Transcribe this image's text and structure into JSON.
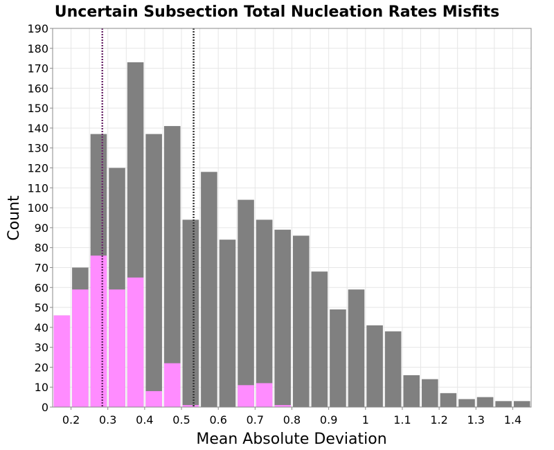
{
  "chart_data": {
    "type": "bar",
    "title": "Uncertain Subsection Total Nucleation Rates Misfits",
    "xlabel": "Mean Absolute Deviation",
    "ylabel": "Count",
    "xlim": [
      0.15,
      1.45
    ],
    "ylim": [
      0,
      190
    ],
    "bin_width": 0.05,
    "x_ticks": [
      "0.2",
      "0.3",
      "0.4",
      "0.5",
      "0.6",
      "0.7",
      "0.8",
      "0.9",
      "1",
      "1.1",
      "1.2",
      "1.3",
      "1.4"
    ],
    "x_tick_values": [
      0.2,
      0.3,
      0.4,
      0.5,
      0.6,
      0.7,
      0.8,
      0.9,
      1.0,
      1.1,
      1.2,
      1.3,
      1.4
    ],
    "y_ticks": [
      0,
      10,
      20,
      30,
      40,
      50,
      60,
      70,
      80,
      90,
      100,
      110,
      120,
      130,
      140,
      150,
      160,
      170,
      180,
      190
    ],
    "grid": true,
    "series": [
      {
        "color": "#808080",
        "bins": [
          0.175,
          0.225,
          0.275,
          0.325,
          0.375,
          0.425,
          0.475,
          0.525,
          0.575,
          0.625,
          0.675,
          0.725,
          0.775,
          0.825,
          0.875,
          0.925,
          0.975,
          1.025,
          1.075,
          1.125,
          1.175,
          1.225,
          1.275,
          1.325,
          1.375,
          1.425
        ],
        "values": [
          46,
          70,
          137,
          120,
          173,
          137,
          141,
          94,
          118,
          84,
          104,
          94,
          89,
          86,
          68,
          49,
          59,
          41,
          38,
          16,
          14,
          7,
          4,
          5,
          3,
          3
        ]
      },
      {
        "color": "#ff8cff",
        "bins": [
          0.175,
          0.225,
          0.275,
          0.325,
          0.375,
          0.425,
          0.475,
          0.525,
          0.675,
          0.725,
          0.775
        ],
        "values": [
          46,
          59,
          76,
          59,
          65,
          8,
          22,
          1,
          11,
          12,
          1
        ]
      }
    ],
    "vertical_lines": [
      {
        "x": 0.285,
        "color": "#6b2a6b",
        "style": "dotted"
      },
      {
        "x": 0.533,
        "color": "#333333",
        "style": "dotted"
      }
    ]
  }
}
